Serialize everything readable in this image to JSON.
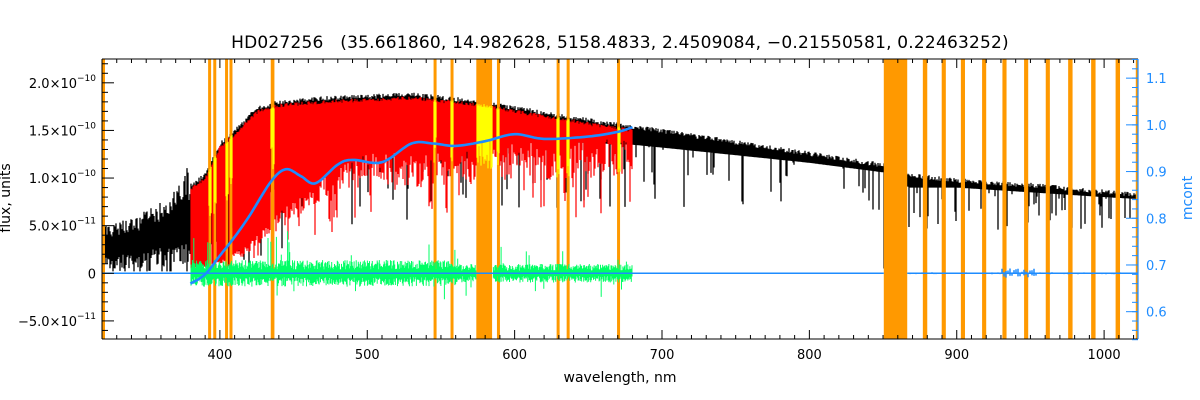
{
  "chart_data": {
    "type": "line",
    "title": "HD027256   (35.661860, 14.982628, 5158.4833, 2.4509084, −0.21550581, 0.22463252)",
    "xlabel": "wavelength, nm",
    "ylabel": "flux, units",
    "ylabel_right": "mcont",
    "xlim": [
      320,
      1023
    ],
    "ylim": [
      -6.9e-11,
      2.25e-10
    ],
    "ylim_right": [
      0.5415,
      1.141
    ],
    "flux_unit": 1e-10,
    "x_ticks": [
      "400",
      "500",
      "600",
      "700",
      "800",
      "900",
      "1000"
    ],
    "y_ticks": [
      {
        "value": -0.5,
        "mant": "−5.0×10",
        "exp": "−11"
      },
      {
        "value": 0,
        "mant": "0",
        "exp": ""
      },
      {
        "value": 0.5,
        "mant": "5.0×10",
        "exp": "−11"
      },
      {
        "value": 1.0,
        "mant": "1.0×10",
        "exp": "−10"
      },
      {
        "value": 1.5,
        "mant": "1.5×10",
        "exp": "−10"
      },
      {
        "value": 2.0,
        "mant": "2.0×10",
        "exp": "−10"
      }
    ],
    "y_ticks_right": [
      "0.6",
      "0.7",
      "0.8",
      "0.9",
      "1.0",
      "1.1"
    ],
    "series": [
      {
        "name": "observed flux (black)",
        "color": "#000000",
        "top": [
          [
            320,
            0.48
          ],
          [
            340,
            0.55
          ],
          [
            360,
            0.72
          ],
          [
            378,
            1.08
          ],
          [
            380,
            0.95
          ],
          [
            390,
            1.05
          ],
          [
            400,
            1.38
          ],
          [
            410,
            1.52
          ],
          [
            425,
            1.75
          ],
          [
            440,
            1.82
          ],
          [
            470,
            1.86
          ],
          [
            530,
            1.9
          ],
          [
            575,
            1.83
          ],
          [
            600,
            1.76
          ],
          [
            650,
            1.63
          ],
          [
            680,
            1.56
          ],
          [
            700,
            1.52
          ],
          [
            750,
            1.4
          ],
          [
            800,
            1.28
          ],
          [
            850,
            1.16
          ],
          [
            868,
            1.05
          ],
          [
            900,
            1.0
          ],
          [
            950,
            0.95
          ],
          [
            1000,
            0.88
          ],
          [
            1023,
            0.85
          ]
        ],
        "bottom": [
          [
            320,
            0.1
          ],
          [
            378,
            0.2
          ],
          [
            380,
            0.2
          ],
          [
            400,
            0.35
          ],
          [
            430,
            0.8
          ],
          [
            460,
            1.15
          ],
          [
            500,
            1.35
          ],
          [
            600,
            1.4
          ],
          [
            680,
            1.35
          ],
          [
            700,
            1.32
          ],
          [
            800,
            1.16
          ],
          [
            850,
            1.06
          ],
          [
            868,
            0.9
          ],
          [
            900,
            0.9
          ],
          [
            1000,
            0.8
          ],
          [
            1023,
            0.78
          ]
        ]
      },
      {
        "name": "model flux (red)",
        "color": "#ff0000",
        "range": [
          380,
          680
        ],
        "bottom": [
          [
            380,
            0.05
          ],
          [
            400,
            0.12
          ],
          [
            420,
            0.3
          ],
          [
            440,
            0.6
          ],
          [
            470,
            1.0
          ],
          [
            500,
            1.2
          ],
          [
            550,
            1.2
          ],
          [
            600,
            1.3
          ],
          [
            680,
            1.35
          ]
        ]
      },
      {
        "name": "residual (green)",
        "color": "#00ff66",
        "range": [
          380,
          680
        ]
      },
      {
        "name": "mcont (blue, right axis)",
        "color": "#1e8cff",
        "points": [
          [
            380,
            0.66
          ],
          [
            390,
            0.68
          ],
          [
            400,
            0.72
          ],
          [
            410,
            0.76
          ],
          [
            420,
            0.805
          ],
          [
            435,
            0.88
          ],
          [
            445,
            0.905
          ],
          [
            455,
            0.89
          ],
          [
            465,
            0.875
          ],
          [
            480,
            0.915
          ],
          [
            490,
            0.925
          ],
          [
            510,
            0.92
          ],
          [
            530,
            0.96
          ],
          [
            545,
            0.96
          ],
          [
            560,
            0.955
          ],
          [
            580,
            0.965
          ],
          [
            600,
            0.98
          ],
          [
            620,
            0.97
          ],
          [
            650,
            0.975
          ],
          [
            670,
            0.985
          ],
          [
            680,
            0.995
          ]
        ]
      }
    ],
    "masked_regions": [
      [
        320,
        321
      ],
      [
        392,
        394
      ],
      [
        395.5,
        397.5
      ],
      [
        403.5,
        405.5
      ],
      [
        406.5,
        408.5
      ],
      [
        434.5,
        437
      ],
      [
        545,
        547
      ],
      [
        556.5,
        558.5
      ],
      [
        574,
        584.7
      ],
      [
        588,
        590
      ],
      [
        628.5,
        630.5
      ],
      [
        635.3,
        637.3
      ],
      [
        669.5,
        671.5
      ],
      [
        850.5,
        866.4
      ],
      [
        877,
        880
      ],
      [
        889.8,
        892.6
      ],
      [
        902.8,
        905.6
      ],
      [
        917.2,
        920
      ],
      [
        931,
        933.8
      ],
      [
        945.7,
        948.5
      ],
      [
        960.4,
        963.2
      ],
      [
        975.6,
        978.6
      ],
      [
        991.2,
        994.2
      ],
      [
        1007.8,
        1010.8
      ],
      [
        1021.5,
        1023
      ]
    ],
    "colors": {
      "mask": "#ff9900",
      "masked_flux": "#ffff00",
      "axis_right": "#1e8cff"
    }
  }
}
